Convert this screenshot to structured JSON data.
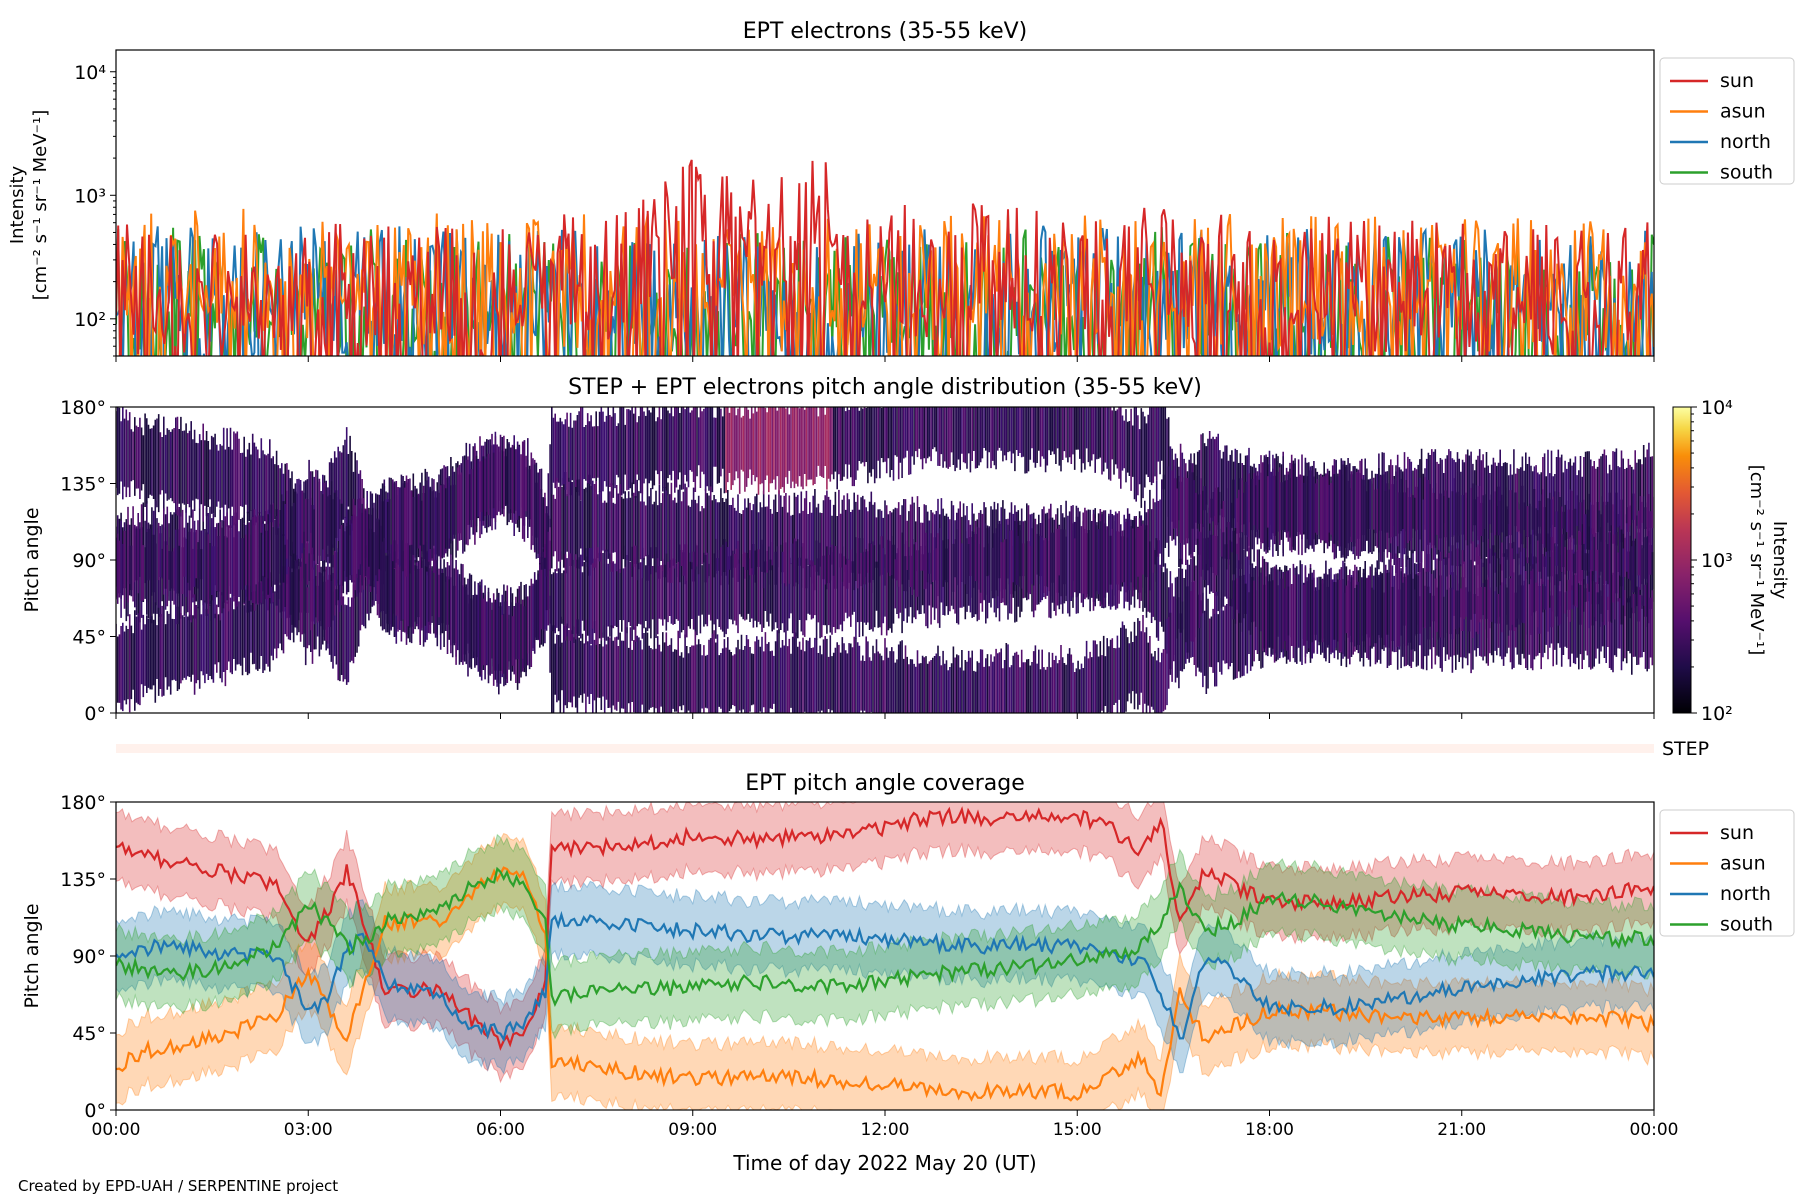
{
  "footer": {
    "credit": "Created by EPD-UAH / SERPENTINE project"
  },
  "colors": {
    "sun": "#d62728",
    "asun": "#ff7f0e",
    "north": "#1f77b4",
    "south": "#2ca02c"
  },
  "chart_data": [
    {
      "id": "intensity",
      "type": "line",
      "title": "EPT electrons (35-55 keV)",
      "ylabel": [
        "Intensity",
        "[cm⁻² s⁻¹ sr⁻¹ MeV⁻¹]"
      ],
      "yscale": "log",
      "ylim": [
        50,
        15000
      ],
      "yticks": [
        {
          "v": 100,
          "label": "10²"
        },
        {
          "v": 1000,
          "label": "10³"
        },
        {
          "v": 10000,
          "label": "10⁴"
        }
      ],
      "xlim": [
        0,
        24
      ],
      "legend": {
        "placement": "outside-top-right",
        "entries": [
          "sun",
          "asun",
          "north",
          "south"
        ]
      },
      "series": [
        {
          "name": "sun",
          "x": [
            0,
            2,
            4,
            6,
            8,
            9,
            10,
            11,
            12,
            14,
            16,
            18,
            20,
            22,
            24
          ],
          "y": [
            170,
            160,
            170,
            180,
            220,
            650,
            500,
            600,
            240,
            260,
            240,
            200,
            190,
            180,
            180
          ]
        },
        {
          "name": "asun",
          "x": [
            0,
            2,
            4,
            6,
            8,
            10,
            12,
            14,
            16,
            18,
            20,
            22,
            24
          ],
          "y": [
            230,
            220,
            210,
            210,
            200,
            190,
            200,
            210,
            200,
            200,
            190,
            190,
            200
          ]
        },
        {
          "name": "north",
          "x": [
            0,
            2,
            4,
            6,
            8,
            10,
            12,
            14,
            16,
            18,
            20,
            22,
            24
          ],
          "y": [
            180,
            160,
            160,
            150,
            150,
            140,
            150,
            160,
            160,
            150,
            150,
            150,
            150
          ]
        },
        {
          "name": "south",
          "x": [
            0,
            2,
            4,
            6,
            8,
            10,
            12,
            14,
            16,
            18,
            20,
            22,
            24
          ],
          "y": [
            160,
            150,
            150,
            150,
            150,
            140,
            150,
            160,
            160,
            150,
            150,
            150,
            150
          ]
        }
      ]
    },
    {
      "id": "pad",
      "type": "heatmap",
      "title": "STEP + EPT electrons pitch angle distribution (35-55 keV)",
      "ylabel": "Pitch angle",
      "ylim": [
        0,
        180
      ],
      "yticks": [
        {
          "v": 0,
          "label": "0°"
        },
        {
          "v": 45,
          "label": "45°"
        },
        {
          "v": 90,
          "label": "90°"
        },
        {
          "v": 135,
          "label": "135°"
        },
        {
          "v": 180,
          "label": "180°"
        }
      ],
      "xlim": [
        0,
        24
      ],
      "colorbar": {
        "label": [
          "Intensity",
          "[cm⁻² s⁻¹ sr⁻¹ MeV⁻¹]"
        ],
        "scale": "log",
        "range": [
          100,
          10000
        ],
        "ticks": [
          {
            "v": 100,
            "label": "10²"
          },
          {
            "v": 1000,
            "label": "10³"
          },
          {
            "v": 10000,
            "label": "10⁴"
          }
        ],
        "colormap": "inferno"
      },
      "step_label": "STEP"
    },
    {
      "id": "coverage",
      "type": "area",
      "title": "EPT pitch angle coverage",
      "ylabel": "Pitch angle",
      "xlabel": "Time of day 2022 May 20 (UT)",
      "ylim": [
        0,
        180
      ],
      "yticks": [
        {
          "v": 0,
          "label": "0°"
        },
        {
          "v": 45,
          "label": "45°"
        },
        {
          "v": 90,
          "label": "90°"
        },
        {
          "v": 135,
          "label": "135°"
        },
        {
          "v": 180,
          "label": "180°"
        }
      ],
      "xlim": [
        0,
        24
      ],
      "xticks": [
        {
          "v": 0,
          "label": "00:00"
        },
        {
          "v": 3,
          "label": "03:00"
        },
        {
          "v": 6,
          "label": "06:00"
        },
        {
          "v": 9,
          "label": "09:00"
        },
        {
          "v": 12,
          "label": "12:00"
        },
        {
          "v": 15,
          "label": "15:00"
        },
        {
          "v": 18,
          "label": "18:00"
        },
        {
          "v": 21,
          "label": "21:00"
        },
        {
          "v": 24,
          "label": "00:00"
        }
      ],
      "legend": {
        "placement": "outside-top-right",
        "entries": [
          "sun",
          "asun",
          "north",
          "south"
        ]
      },
      "band_halfwidth": 20,
      "series": [
        {
          "name": "sun",
          "x": [
            0,
            0.5,
            1,
            1.5,
            2,
            2.5,
            2.8,
            3,
            3.3,
            3.6,
            3.9,
            4.2,
            4.6,
            5,
            5.5,
            6,
            6.4,
            6.7,
            6.8,
            7,
            8,
            9,
            10,
            11,
            12,
            12.5,
            13,
            13.5,
            14,
            15,
            15.5,
            16,
            16.3,
            16.6,
            17,
            17.5,
            18,
            19,
            20,
            21,
            22,
            23,
            24
          ],
          "y": [
            155,
            148,
            145,
            140,
            137,
            130,
            110,
            100,
            115,
            140,
            105,
            70,
            70,
            72,
            55,
            40,
            45,
            75,
            155,
            152,
            155,
            160,
            158,
            160,
            165,
            170,
            172,
            170,
            170,
            172,
            165,
            150,
            170,
            110,
            140,
            130,
            122,
            120,
            125,
            127,
            125,
            125,
            130
          ]
        },
        {
          "name": "asun",
          "x": [
            0,
            0.5,
            1,
            1.5,
            2,
            2.5,
            2.8,
            3,
            3.3,
            3.6,
            3.9,
            4.2,
            4.6,
            5,
            5.5,
            6,
            6.4,
            6.7,
            6.8,
            7,
            8,
            9,
            10,
            11,
            12,
            12.5,
            13,
            13.5,
            14,
            15,
            15.5,
            16,
            16.3,
            16.6,
            17,
            17.5,
            18,
            19,
            20,
            21,
            22,
            23,
            24
          ],
          "y": [
            25,
            35,
            38,
            43,
            48,
            55,
            70,
            80,
            60,
            40,
            75,
            110,
            110,
            110,
            125,
            140,
            135,
            105,
            25,
            28,
            22,
            18,
            20,
            18,
            15,
            12,
            10,
            10,
            12,
            10,
            20,
            30,
            10,
            70,
            40,
            50,
            58,
            57,
            55,
            53,
            55,
            55,
            50
          ]
        },
        {
          "name": "north",
          "x": [
            0,
            0.5,
            1,
            1.5,
            2,
            2.5,
            2.8,
            3,
            3.3,
            3.6,
            3.9,
            4.2,
            4.6,
            5,
            5.5,
            6,
            6.4,
            6.7,
            6.8,
            7,
            8,
            9,
            10,
            11,
            12,
            12.5,
            13,
            13.5,
            14,
            15,
            15.5,
            16,
            16.3,
            16.6,
            17,
            17.5,
            18,
            19,
            20,
            21,
            22,
            23,
            24
          ],
          "y": [
            92,
            95,
            95,
            92,
            90,
            90,
            70,
            55,
            65,
            95,
            100,
            75,
            70,
            68,
            50,
            45,
            50,
            70,
            110,
            112,
            108,
            105,
            102,
            102,
            100,
            98,
            97,
            95,
            97,
            95,
            90,
            88,
            70,
            40,
            90,
            80,
            60,
            60,
            65,
            72,
            75,
            80,
            80
          ]
        },
        {
          "name": "south",
          "x": [
            0,
            0.5,
            1,
            1.5,
            2,
            2.5,
            2.8,
            3,
            3.3,
            3.6,
            3.9,
            4.2,
            4.6,
            5,
            5.5,
            6,
            6.4,
            6.7,
            6.8,
            7,
            8,
            9,
            10,
            11,
            12,
            12.5,
            13,
            13.5,
            14,
            15,
            15.5,
            16,
            16.3,
            16.6,
            17,
            17.5,
            18,
            19,
            20,
            21,
            22,
            23,
            24
          ],
          "y": [
            85,
            82,
            80,
            82,
            88,
            95,
            110,
            120,
            110,
            95,
            100,
            110,
            112,
            115,
            130,
            138,
            130,
            110,
            65,
            68,
            70,
            72,
            75,
            72,
            75,
            78,
            80,
            82,
            83,
            87,
            90,
            95,
            110,
            130,
            105,
            110,
            125,
            120,
            112,
            108,
            105,
            100,
            100
          ]
        }
      ]
    }
  ]
}
